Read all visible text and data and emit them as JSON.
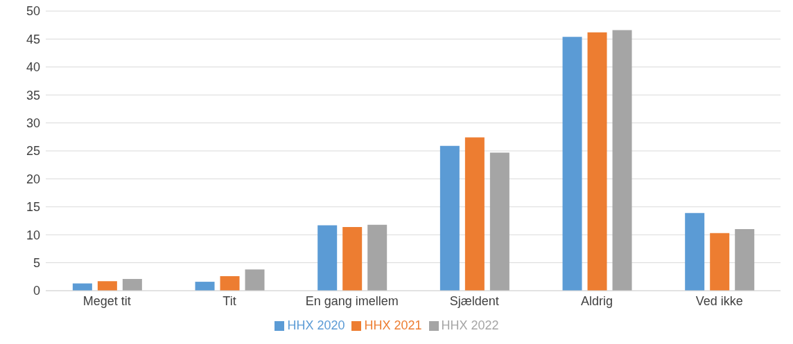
{
  "chart_data": {
    "type": "bar",
    "categories": [
      "Meget tit",
      "Tit",
      "En gang imellem",
      "Sjældent",
      "Aldrig",
      "Ved ikke"
    ],
    "series": [
      {
        "name": "HHX 2020",
        "color": "#5b9bd5",
        "values": [
          1.3,
          1.6,
          11.7,
          25.9,
          45.4,
          13.9
        ]
      },
      {
        "name": "HHX 2021",
        "color": "#ed7d31",
        "values": [
          1.7,
          2.6,
          11.4,
          27.4,
          46.2,
          10.3
        ]
      },
      {
        "name": "HHX 2022",
        "color": "#a5a5a5",
        "values": [
          2.1,
          3.8,
          11.8,
          24.7,
          46.6,
          11.0
        ]
      }
    ],
    "ylim": [
      0,
      50
    ],
    "yticks": [
      0,
      5,
      10,
      15,
      20,
      25,
      30,
      35,
      40,
      45,
      50
    ],
    "grid": "y",
    "legend": "bottom"
  }
}
